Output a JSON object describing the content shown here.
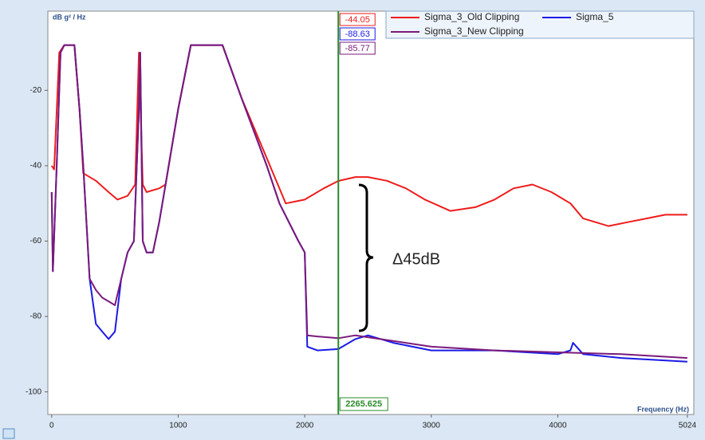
{
  "chart_data": {
    "type": "line",
    "y_label": "dB g² / Hz",
    "x_label": "Frequency (Hz)",
    "xlim": [
      -30,
      5075
    ],
    "ylim": [
      -106,
      1
    ],
    "xticks": [
      0,
      1000,
      2000,
      3000,
      4000,
      5024
    ],
    "yticks": [
      -20,
      -40,
      -60,
      -80,
      -100
    ],
    "legend": "top-right",
    "series": [
      {
        "name": "Sigma_3_Old Clipping",
        "color": "#ee1c1c",
        "x": [
          0,
          20,
          60,
          100,
          180,
          220,
          250,
          350,
          450,
          520,
          600,
          660,
          690,
          720,
          750,
          850,
          900,
          1000,
          1100,
          1350,
          1500,
          1700,
          1850,
          2000,
          2150,
          2265.625,
          2400,
          2500,
          2650,
          2800,
          2950,
          3150,
          3350,
          3500,
          3650,
          3800,
          3950,
          4100,
          4200,
          4300,
          4400,
          4550,
          4700,
          4850,
          5024
        ],
        "values": [
          -40,
          -41,
          -10,
          -8,
          -8,
          -25,
          -42,
          -44,
          -47,
          -49,
          -48,
          -45,
          -10,
          -45,
          -47,
          -46,
          -45,
          -25,
          -8,
          -8,
          -22,
          -38,
          -50,
          -49,
          -46,
          -44.05,
          -43,
          -43,
          -44,
          -46,
          -49,
          -52,
          -51,
          -49,
          -46,
          -45,
          -47,
          -50,
          -54,
          -55,
          -56,
          -55,
          -54,
          -53,
          -53
        ]
      },
      {
        "name": "Sigma_5",
        "color": "#1a1ae6",
        "x": [
          0,
          10,
          40,
          70,
          100,
          180,
          220,
          250,
          300,
          350,
          400,
          450,
          500,
          550,
          600,
          650,
          690,
          700,
          720,
          750,
          800,
          850,
          900,
          1000,
          1100,
          1350,
          1500,
          1700,
          1800,
          1950,
          2000,
          2020,
          2100,
          2265.625,
          2400,
          2500,
          2700,
          3000,
          3500,
          4000,
          4100,
          4120,
          4200,
          4500,
          5024
        ],
        "values": [
          -47,
          -68,
          -40,
          -10,
          -8,
          -8,
          -25,
          -40,
          -70,
          -82,
          -84,
          -86,
          -84,
          -70,
          -63,
          -60,
          -25,
          -10,
          -60,
          -63,
          -63,
          -55,
          -45,
          -25,
          -8,
          -8,
          -22,
          -40,
          -50,
          -60,
          -63,
          -88,
          -89,
          -88.63,
          -86,
          -85,
          -87,
          -89,
          -89,
          -90,
          -89,
          -87,
          -90,
          -91,
          -92
        ]
      },
      {
        "name": "Sigma_3_New Clipping",
        "color": "#7b1a7b",
        "x": [
          0,
          10,
          40,
          70,
          100,
          180,
          220,
          250,
          300,
          350,
          400,
          450,
          500,
          550,
          600,
          650,
          690,
          700,
          720,
          750,
          800,
          850,
          900,
          1000,
          1100,
          1350,
          1500,
          1700,
          1800,
          1950,
          2000,
          2020,
          2100,
          2265.625,
          2400,
          2500,
          2700,
          3000,
          3500,
          4000,
          4500,
          5024
        ],
        "values": [
          -47,
          -68,
          -40,
          -10,
          -8,
          -8,
          -25,
          -40,
          -70,
          -73,
          -75,
          -76,
          -77,
          -70,
          -63,
          -60,
          -25,
          -10,
          -60,
          -63,
          -63,
          -55,
          -45,
          -25,
          -8,
          -8,
          -22,
          -40,
          -50,
          -60,
          -63,
          -85,
          -85.3,
          -85.77,
          -85,
          -85.5,
          -86.5,
          -88,
          -89,
          -89.5,
          -90,
          -91
        ]
      }
    ],
    "cursor": {
      "x": 2265.625,
      "values": [
        -44.05,
        -88.63,
        -85.77
      ],
      "color": "#2a8a2a"
    },
    "annotation": "Δ45dB"
  }
}
